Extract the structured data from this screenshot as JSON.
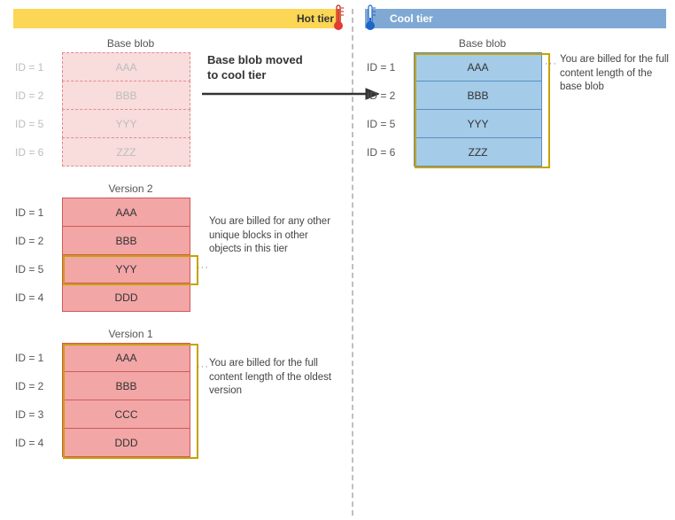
{
  "headers": {
    "hot": {
      "label": "Hot tier",
      "bg": "#fcd655",
      "fg": "#333333"
    },
    "cool": {
      "label": "Cool tier",
      "bg": "#7fa9d4",
      "fg": "#ffffff"
    }
  },
  "thermometers": {
    "hot": {
      "bulb": "#e53935",
      "tube_fill": "#e53935",
      "outline": "#b71c1c"
    },
    "cool": {
      "bulb": "#1e66c9",
      "tube_fill": "#ffffff",
      "outline": "#1e66c9"
    }
  },
  "arrow_label": "Base blob moved\nto cool tier",
  "annotations": {
    "cool_base": "You are billed for the full content length of the base blob",
    "v2": "You are billed for any other unique blocks in other objects in this tier",
    "v1": "You are billed for the full content length of the oldest version"
  },
  "palette": {
    "hot_faded_fill": "#f9dcdc",
    "hot_faded_border": "#e58b8b",
    "hot_faded_text": "#bdbdbd",
    "hot_fill": "#f2a6a6",
    "hot_border": "#d05959",
    "cool_fill": "#a4cbe8",
    "cool_border": "#5a8fc1",
    "highlight": "#c7a200"
  },
  "hot_groups": [
    {
      "title": "Base blob",
      "style": "faded",
      "rows": [
        {
          "id": "ID = 1",
          "val": "AAA"
        },
        {
          "id": "ID = 2",
          "val": "BBB"
        },
        {
          "id": "ID = 5",
          "val": "YYY"
        },
        {
          "id": "ID = 6",
          "val": "ZZZ"
        }
      ],
      "highlight": null
    },
    {
      "title": "Version 2",
      "style": "solid",
      "rows": [
        {
          "id": "ID = 1",
          "val": "AAA"
        },
        {
          "id": "ID = 2",
          "val": "BBB"
        },
        {
          "id": "ID = 5",
          "val": "YYY"
        },
        {
          "id": "ID = 4",
          "val": "DDD"
        }
      ],
      "highlight": {
        "start": 2,
        "end": 2
      }
    },
    {
      "title": "Version 1",
      "style": "solid",
      "rows": [
        {
          "id": "ID = 1",
          "val": "AAA"
        },
        {
          "id": "ID = 2",
          "val": "BBB"
        },
        {
          "id": "ID = 3",
          "val": "CCC"
        },
        {
          "id": "ID = 4",
          "val": "DDD"
        }
      ],
      "highlight": {
        "start": 0,
        "end": 3
      }
    }
  ],
  "cool_groups": [
    {
      "title": "Base blob",
      "style": "cool",
      "rows": [
        {
          "id": "ID = 1",
          "val": "AAA"
        },
        {
          "id": "ID = 2",
          "val": "BBB"
        },
        {
          "id": "ID = 5",
          "val": "YYY"
        },
        {
          "id": "ID = 6",
          "val": "ZZZ"
        }
      ],
      "highlight": {
        "start": 0,
        "end": 3
      }
    }
  ]
}
